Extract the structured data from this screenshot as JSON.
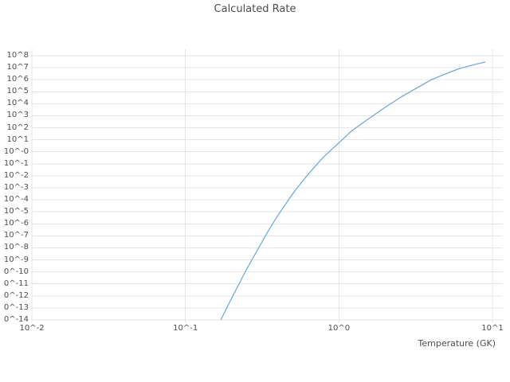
{
  "chart_data": {
    "type": "line",
    "title": "Calculated Rate",
    "xlabel": "Temperature (GK)",
    "ylabel": "",
    "x_scale": "log",
    "y_scale": "log",
    "x_range_log10": [
      -2,
      1
    ],
    "y_range_log10": [
      -14,
      8
    ],
    "grid": true,
    "legend": "none",
    "line_color": "#6aa5d8",
    "x_tick_labels": [
      "10^-2",
      "10^-1",
      "10^0",
      "10^1"
    ],
    "y_tick_labels": [
      "10^8",
      "10^7",
      "10^6",
      "10^5",
      "10^4",
      "10^3",
      "10^2",
      "10^1",
      "10^-0",
      "10^-1",
      "10^-2",
      "10^-3",
      "10^-4",
      "10^-5",
      "10^-6",
      "10^-7",
      "10^-8",
      "10^-9",
      "0^-10",
      "0^-11",
      "0^-12",
      "0^-13",
      "0^-14"
    ],
    "series": [
      {
        "name": "calculated-rate",
        "x": [
          0.17,
          0.2,
          0.25,
          0.3,
          0.35,
          0.4,
          0.5,
          0.6,
          0.7,
          0.8,
          0.9,
          1.0,
          1.2,
          1.5,
          2.0,
          2.5,
          3.0,
          4.0,
          5.0,
          6.0,
          7.0,
          8.0,
          9.0
        ],
        "y": [
          1e-14,
          6.3e-13,
          1.6e-10,
          1e-08,
          3.2e-07,
          5e-06,
          0.00032,
          0.0063,
          0.063,
          0.4,
          1.6,
          5.6,
          50,
          400,
          5000,
          32000.0,
          126000.0,
          1000000.0,
          3200000.0,
          7900000.0,
          14000000.0,
          21000000.0,
          30000000.0
        ]
      }
    ]
  }
}
